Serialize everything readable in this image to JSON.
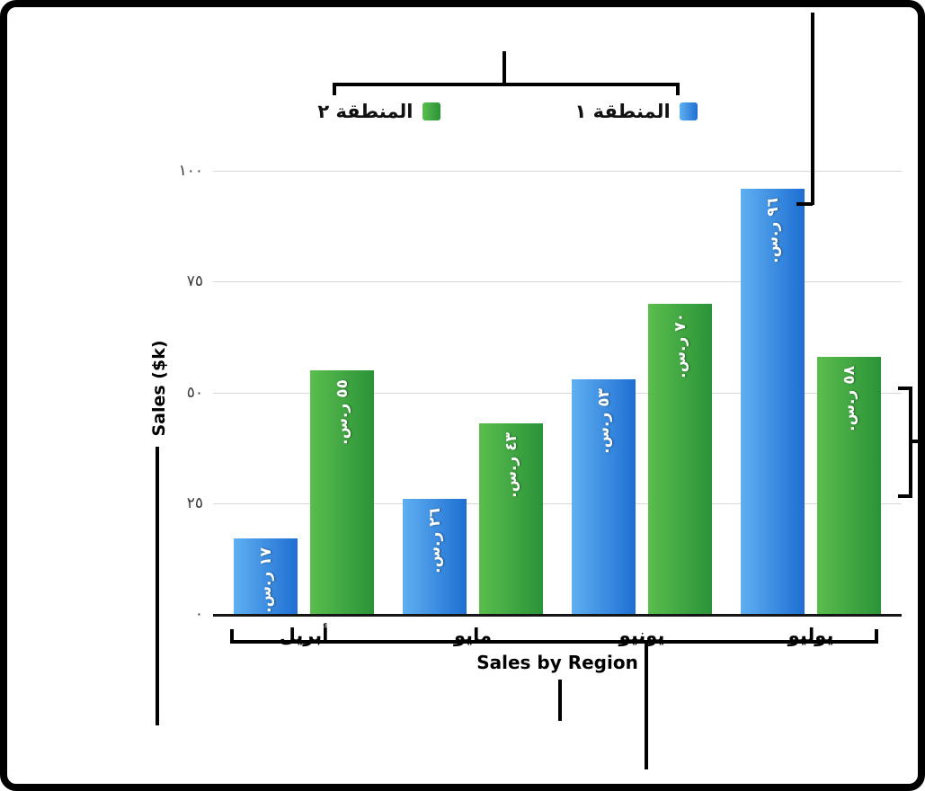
{
  "chart_data": {
    "type": "bar",
    "title": "",
    "xlabel": "Sales by Region",
    "ylabel": "Sales ($k)",
    "categories": [
      "أبريل",
      "مايو",
      "يونيو",
      "يوليو"
    ],
    "series": [
      {
        "name": "المنطقة ١",
        "values": [
          17,
          26,
          53,
          96
        ],
        "labels": [
          "١٧ ر.س.",
          "٢٦ ر.س.",
          "٥٣ ر.س.",
          "٩٦ ر.س."
        ],
        "color": "#2B7FDC",
        "gradient": [
          "#5FAFF2",
          "#1E6FD2"
        ]
      },
      {
        "name": "المنطقة ٢",
        "values": [
          55,
          43,
          70,
          58
        ],
        "labels": [
          "٥٥ ر.س.",
          "٤٣ ر.س.",
          "٧٠ ر.س.",
          "٥٨ ر.س."
        ],
        "color": "#3BA23C",
        "gradient": [
          "#5ABD4D",
          "#2B9338"
        ]
      }
    ],
    "ylim": [
      0,
      100
    ],
    "yticks": {
      "values": [
        0,
        25,
        50,
        75,
        100
      ],
      "labels": [
        "٠",
        "٢٥",
        "٥٠",
        "٧٥",
        "١٠٠"
      ]
    },
    "grid": true,
    "legend_position": "top"
  },
  "legend": {
    "items": [
      {
        "label": "المنطقة ١",
        "color": "#2B7FDC"
      },
      {
        "label": "المنطقة ٢",
        "color": "#3BA23C"
      }
    ]
  },
  "annotation": {
    "line_color": "#000000"
  }
}
